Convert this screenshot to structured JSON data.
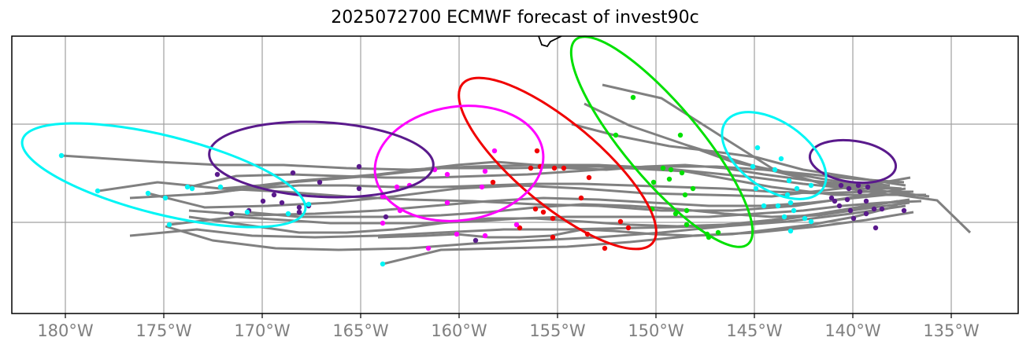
{
  "title": "2025072700 ECMWF forecast of invest90c",
  "lon_ticks": [
    "180°W",
    "175°W",
    "170°W",
    "165°W",
    "160°W",
    "155°W",
    "150°W",
    "145°W",
    "140°W",
    "135°W"
  ],
  "colors": {
    "track": "#808080",
    "grid": "#a0a0a0",
    "day1": "#5a1a8c",
    "day2": "#00f5f5",
    "day3": "#00e000",
    "day4": "#f00000",
    "day5": "#ff00ff",
    "day6": "#5a1a8c",
    "day7": "#00f5f5"
  },
  "ellipses": [
    {
      "group": "day1",
      "color": "#5a1a8c",
      "cx": -140.0,
      "cy": 13.1,
      "rx": 2.2,
      "ry": 1.05,
      "angle": 8
    },
    {
      "group": "day2",
      "color": "#00f5f5",
      "cx": -144.0,
      "cy": 13.4,
      "rx": 3.0,
      "ry": 1.7,
      "angle": 35
    },
    {
      "group": "day3",
      "color": "#00e000",
      "cx": -149.7,
      "cy": 14.1,
      "rx": 6.8,
      "ry": 1.9,
      "angle": 50
    },
    {
      "group": "day4",
      "color": "#f00000",
      "cx": -155.0,
      "cy": 13.0,
      "rx": 6.3,
      "ry": 2.1,
      "angle": 40
    },
    {
      "group": "day5",
      "color": "#ff00ff",
      "cx": -160.0,
      "cy": 13.0,
      "rx": 4.3,
      "ry": 2.9,
      "angle": -8
    },
    {
      "group": "day6",
      "color": "#5a1a8c",
      "cx": -167.0,
      "cy": 13.2,
      "rx": 5.7,
      "ry": 1.9,
      "angle": 3
    },
    {
      "group": "day7",
      "color": "#00f5f5",
      "cx": -175.0,
      "cy": 12.4,
      "rx": 7.4,
      "ry": 2.0,
      "angle": 14
    }
  ]
}
